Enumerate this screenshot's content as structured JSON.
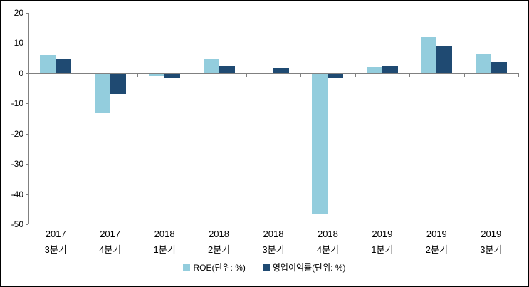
{
  "chart_data": {
    "type": "bar",
    "title": "",
    "xlabel": "",
    "ylabel": "",
    "categories": [
      "2017 3분기",
      "2017 4분기",
      "2018 1분기",
      "2018 2분기",
      "2018 3분기",
      "2018 4분기",
      "2019 1분기",
      "2019 2분기",
      "2019 3분기"
    ],
    "series": [
      {
        "name": "ROE(단위: %)",
        "color": "#93CDDD",
        "values": [
          6.2,
          -13.0,
          -0.7,
          4.6,
          0.0,
          -46.2,
          2.0,
          11.9,
          6.3
        ]
      },
      {
        "name": "영업이익률(단위: %)",
        "color": "#1F4A72",
        "values": [
          4.6,
          -6.7,
          -1.2,
          2.3,
          1.5,
          -1.5,
          2.3,
          9.0,
          3.7
        ]
      }
    ],
    "ylim": [
      -50,
      20
    ],
    "yticks": [
      20,
      10,
      0,
      -10,
      -20,
      -30,
      -40,
      -50
    ],
    "grid": false,
    "legend_position": "bottom",
    "axis_color": "#808080",
    "text_color": "#000000",
    "background_color": "#FFFFFF",
    "frame_color": "#000000"
  }
}
